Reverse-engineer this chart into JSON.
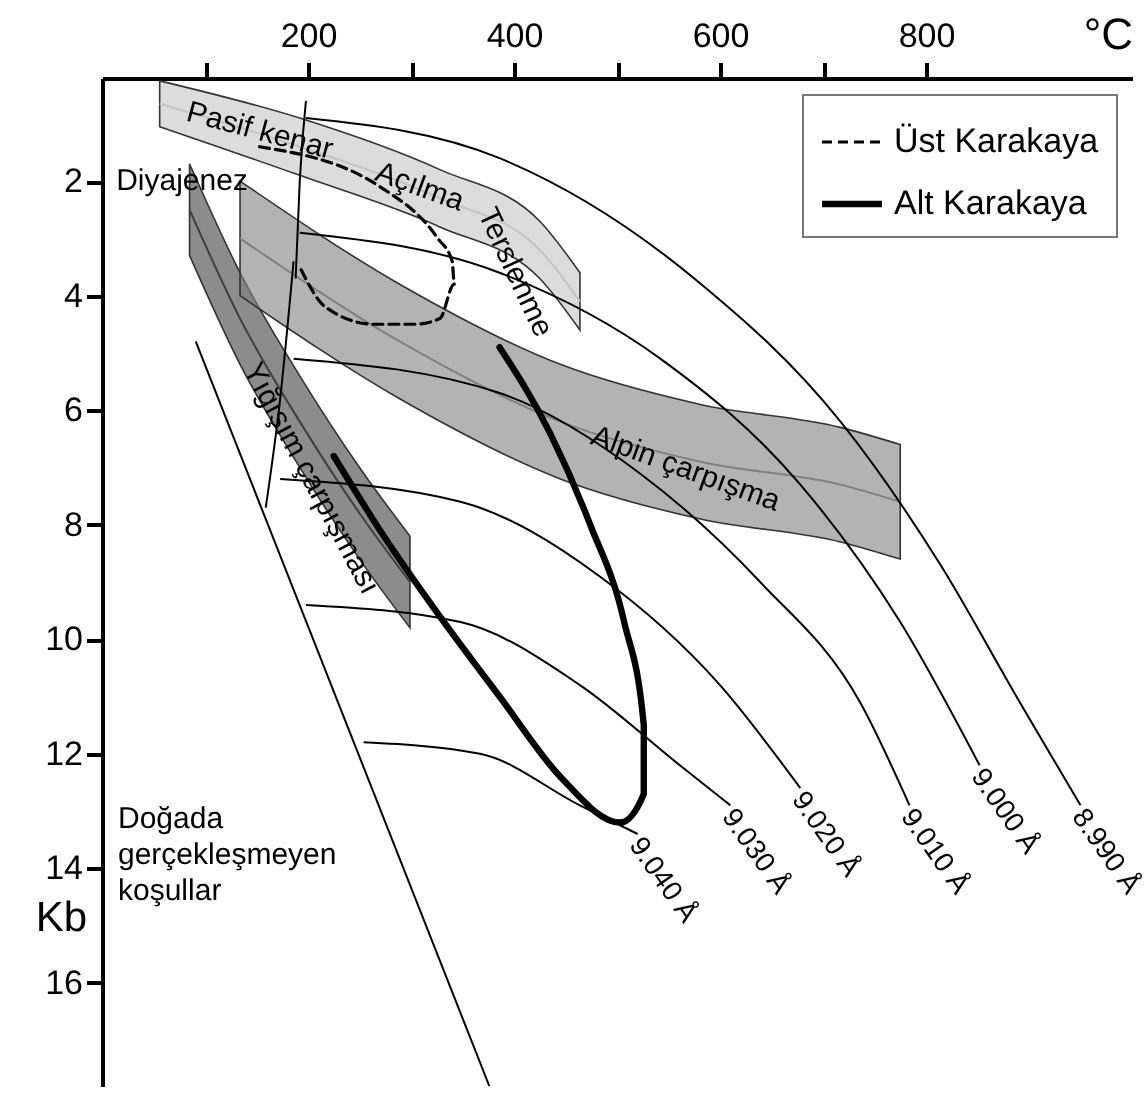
{
  "chart_data": {
    "type": "line",
    "xlabel": "°C",
    "ylabel": "Kb",
    "xlim": [
      0,
      1000
    ],
    "ylim": [
      17.8,
      0.2
    ],
    "xticks": [
      {
        "value": 100,
        "label": null
      },
      200,
      {
        "value": 300,
        "label": null
      },
      400,
      {
        "value": 500,
        "label": null
      },
      600,
      {
        "value": 700,
        "label": null
      },
      800
    ],
    "yticks": [
      2,
      4,
      6,
      8,
      10,
      12,
      14,
      16
    ],
    "grid": false,
    "legend": "top right",
    "series": [
      {
        "color": "#c4c4c4",
        "x": [
          56,
          192,
          328,
          425,
          464
        ],
        "values": [
          0.65,
          1.4,
          2.3,
          3.2,
          4.1
        ],
        "lower": [
          0.25,
          0.9,
          1.8,
          2.7,
          3.6
        ],
        "upper": [
          1.05,
          1.9,
          2.8,
          3.7,
          4.6
        ]
      },
      {
        "color": "#3f3f3f",
        "x": [
          85,
          134,
          192,
          250,
          299
        ],
        "values": [
          2.5,
          4.4,
          6.2,
          7.8,
          9.0
        ],
        "lower": [
          1.7,
          3.6,
          5.4,
          7.0,
          8.2
        ],
        "upper": [
          3.3,
          5.2,
          7.0,
          8.6,
          9.8
        ]
      },
      {
        "color": "#808080",
        "x": [
          134,
          289,
          445,
          581,
          717,
          775
        ],
        "values": [
          3.0,
          4.8,
          6.2,
          6.9,
          7.3,
          7.6
        ],
        "lower": [
          2.0,
          3.8,
          5.2,
          5.9,
          6.3,
          6.6
        ],
        "upper": [
          4.0,
          5.8,
          7.2,
          7.9,
          8.3,
          8.6
        ]
      },
      {
        "name": "8.990 Å",
        "color": "#000000",
        "x": [
          198,
          386,
          575,
          717,
          814,
          891,
          950
        ],
        "values": [
          0.9,
          1.6,
          3.7,
          6.2,
          8.7,
          11.1,
          12.9
        ]
      },
      {
        "name": "9.000 Å",
        "color": "#000000",
        "x": [
          192,
          386,
          542,
          678,
          775,
          852
        ],
        "values": [
          2.9,
          3.6,
          5.1,
          7.3,
          9.7,
          12.2
        ]
      },
      {
        "name": "9.010 Å",
        "color": "#000000",
        "x": [
          186,
          386,
          522,
          639,
          736,
          784
        ],
        "values": [
          5.1,
          5.7,
          7.1,
          9.0,
          11.1,
          12.9
        ]
      },
      {
        "name": "9.020 Å",
        "color": "#000000",
        "x": [
          173,
          348,
          483,
          600,
          678
        ],
        "values": [
          7.2,
          7.6,
          8.9,
          10.8,
          12.6
        ]
      },
      {
        "name": "9.030 Å",
        "color": "#000000",
        "x": [
          198,
          348,
          464,
          561,
          610
        ],
        "values": [
          9.4,
          9.7,
          10.8,
          12.2,
          12.9
        ]
      },
      {
        "name": "9.040 Å",
        "color": "#000000",
        "x": [
          254,
          367,
          464,
          520
        ],
        "values": [
          11.8,
          12.0,
          12.9,
          13.4
        ]
      },
      {
        "color": "#000000",
        "x": [
          91,
          376
        ],
        "values": [
          4.8,
          17.8
        ]
      },
      {
        "color": "#000000",
        "x": [
          198,
          192,
          188
        ],
        "values": [
          0.6,
          2.0,
          3.7
        ]
      },
      {
        "color": "#000000",
        "x": [
          159,
          173,
          186
        ],
        "values": [
          7.7,
          5.8,
          3.4
        ]
      },
      {
        "name": "Üst Karakaya",
        "color": "#000000",
        "line_style": "dashed",
        "x": [
          153,
          270,
          326,
          340,
          342,
          328,
          303,
          264,
          217,
          192
        ],
        "values": [
          1.4,
          2.1,
          3.0,
          3.4,
          3.8,
          4.4,
          4.5,
          4.5,
          4.2,
          3.5
        ]
      },
      {
        "name": "Alt Karakaya",
        "color": "#000000",
        "line_style": "solid",
        "x": [
          225,
          270,
          328,
          386,
          445,
          503,
          526,
          526,
          507,
          474,
          435,
          386
        ],
        "values": [
          6.8,
          8.1,
          9.6,
          11.0,
          12.4,
          13.2,
          12.7,
          11.5,
          9.7,
          8.0,
          6.4,
          4.9
        ]
      }
    ],
    "annotations": [
      "Diyajenez",
      "Pasif kenar",
      "Açılma",
      "Terslenme",
      "Yığışım çarpışması",
      "Alpin çarpışma",
      "Doğada\ngerçekleşmeyen\nkoşullar"
    ]
  }
}
